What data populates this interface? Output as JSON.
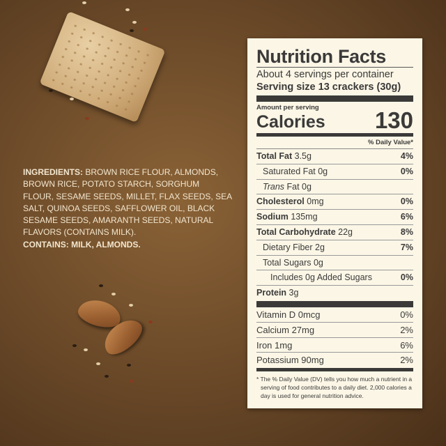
{
  "ingredients": {
    "heading": "INGREDIENTS:",
    "text": " BROWN RICE FLOUR, ALMONDS, BROWN RICE, POTATO STARCH, SORGHUM FLOUR, SESAME SEEDS, MILLET, FLAX SEEDS, SEA SALT, QUINOA SEEDS, SAFFLOWER OIL, BLACK SESAME SEEDS, AMARANTH SEEDS, NATURAL FLAVORS (CONTAINS MILK).",
    "contains_heading": "CONTAINS:",
    "contains_text": " MILK, ALMONDS."
  },
  "label": {
    "title": "Nutrition Facts",
    "servings": "About 4 servings per container",
    "serving_size": "Serving size 13 crackers (30g)",
    "amount_per_serving": "Amount per serving",
    "calories_label": "Calories",
    "calories": "130",
    "dv_header": "% Daily Value*",
    "rows": [
      {
        "name": "Total Fat",
        "amount": " 3.5g",
        "dv": "4%"
      },
      {
        "name": "Saturated Fat 0g",
        "dv": "0%"
      },
      {
        "italic": "Trans",
        "name": " Fat 0g"
      },
      {
        "name": "Cholesterol",
        "amount": " 0mg",
        "dv": "0%"
      },
      {
        "name": "Sodium",
        "amount": " 135mg",
        "dv": "6%"
      },
      {
        "name": "Total Carbohydrate",
        "amount": " 22g",
        "dv": "8%"
      },
      {
        "name": "Dietary Fiber 2g",
        "dv": "7%"
      },
      {
        "name": "Total Sugars 0g"
      },
      {
        "name": "Includes 0g Added Sugars",
        "dv": "0%"
      },
      {
        "name": "Protein",
        "amount": " 3g"
      }
    ],
    "vitamins": [
      {
        "name": "Vitamin D 0mcg",
        "dv": "0%"
      },
      {
        "name": "Calcium 27mg",
        "dv": "2%"
      },
      {
        "name": "Iron 1mg",
        "dv": "6%"
      },
      {
        "name": "Potassium 90mg",
        "dv": "2%"
      }
    ],
    "footnote": "* The % Daily Value (DV) tells you how much a nutrient in a serving of food contributes to a daily diet. 2,000 calories a day is used for general nutrition advice."
  },
  "colors": {
    "background": "#6e4c2a",
    "label": "#fbf6e6",
    "ink": "#3b3a39",
    "ingredient_text": "#f2e6cf"
  },
  "images": {
    "top": "cracker-with-seeds",
    "bottom": "almonds-with-seeds"
  }
}
